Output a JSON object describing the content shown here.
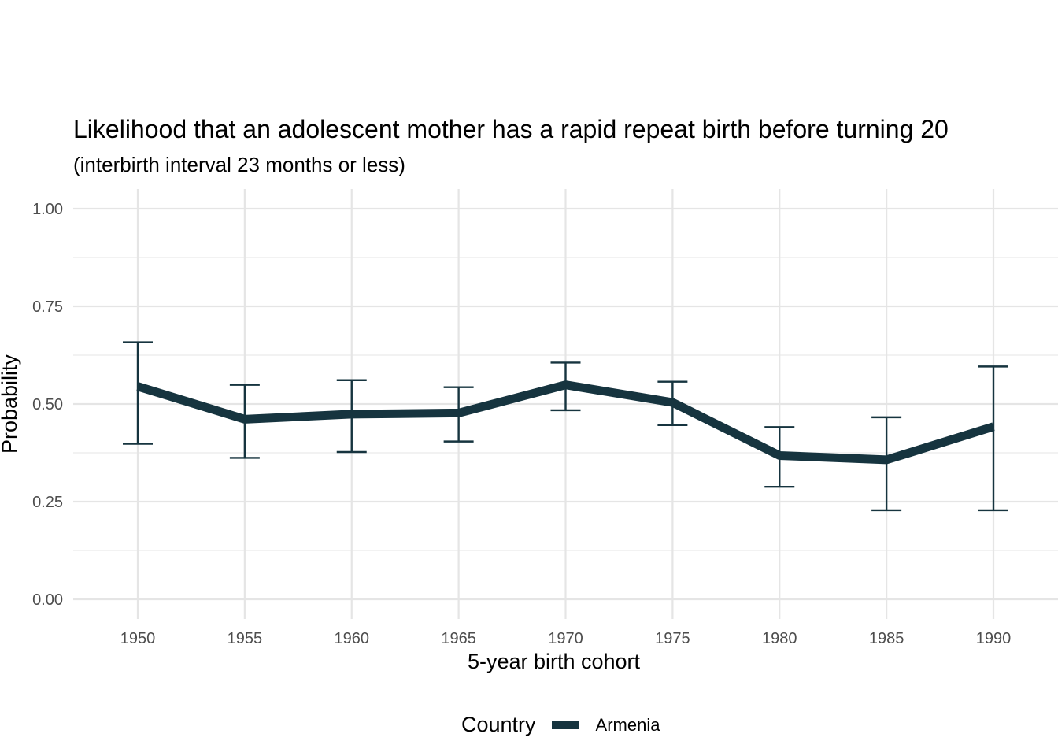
{
  "chart_data": {
    "type": "line",
    "title": "Likelihood that an adolescent mother has a rapid repeat birth before turning 20",
    "subtitle": "(interbirth interval 23 months or less)",
    "xlabel": "5-year birth cohort",
    "ylabel": "Probability",
    "x": [
      1950,
      1955,
      1960,
      1965,
      1970,
      1975,
      1980,
      1985,
      1990
    ],
    "x_tick_labels": [
      "1950",
      "1955",
      "1960",
      "1965",
      "1970",
      "1975",
      "1980",
      "1985",
      "1990"
    ],
    "y_tick_values": [
      0,
      0.25,
      0.5,
      0.75,
      1
    ],
    "y_tick_labels": [
      "0.00",
      "0.25",
      "0.50",
      "0.75",
      "1.00"
    ],
    "xlim": [
      1947,
      1993
    ],
    "ylim": [
      0,
      1
    ],
    "grid": true,
    "legend": {
      "title": "Country",
      "position": "bottom"
    },
    "series": [
      {
        "name": "Armenia",
        "color": "#16343f",
        "values": [
          0.545,
          0.461,
          0.474,
          0.477,
          0.549,
          0.504,
          0.368,
          0.357,
          0.442
        ],
        "lower": [
          0.398,
          0.362,
          0.377,
          0.404,
          0.484,
          0.446,
          0.288,
          0.228,
          0.228
        ],
        "upper": [
          0.658,
          0.549,
          0.561,
          0.543,
          0.606,
          0.557,
          0.441,
          0.466,
          0.596
        ]
      }
    ]
  }
}
